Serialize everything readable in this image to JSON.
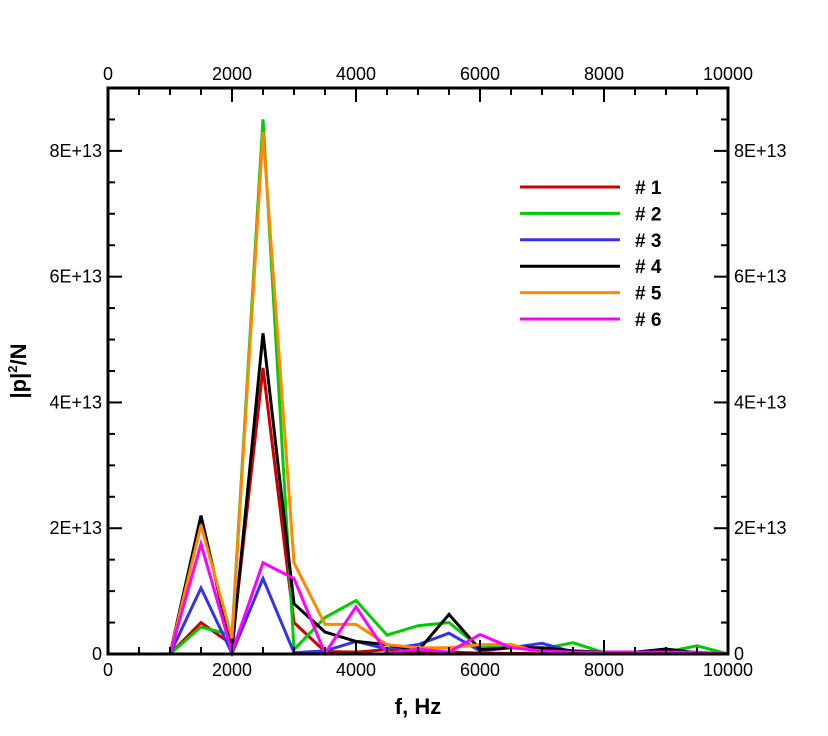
{
  "chart_data": {
    "type": "line",
    "title": "",
    "xlabel": "f, Hz",
    "ylabel": "|p|²/N",
    "ylabel_parts": {
      "base": "|p|",
      "sup": "2",
      "tail": "/N"
    },
    "xlim": [
      0,
      10000
    ],
    "ylim": [
      0,
      90000000000000.0
    ],
    "x_major_ticks": [
      0,
      2000,
      4000,
      6000,
      8000,
      10000
    ],
    "x_tick_labels": [
      "0",
      "2000",
      "4000",
      "6000",
      "8000",
      "10000"
    ],
    "y_major_ticks": [
      0,
      20000000000000.0,
      40000000000000.0,
      60000000000000.0,
      80000000000000.0
    ],
    "y_tick_labels": [
      "0",
      "2E+13",
      "4E+13",
      "6E+13",
      "8E+13"
    ],
    "x_minor_step": 500,
    "y_minor_step": 5000000000000.0,
    "grid": false,
    "legend_position": "top-right",
    "x": [
      0,
      500,
      1000,
      1500,
      2000,
      2500,
      3000,
      3500,
      4000,
      4500,
      5000,
      5500,
      6000,
      6500,
      7000,
      7500,
      8000,
      8500,
      9000,
      9500,
      10000
    ],
    "series": [
      {
        "name": "# 1",
        "color": "#cc0000",
        "values": [
          0,
          0,
          0,
          5000000000000.0,
          1500000000000.0,
          45500000000000.0,
          5000000000000.0,
          400000000000.0,
          300000000000.0,
          700000000000.0,
          300000000000.0,
          300000000000.0,
          150000000000.0,
          100000000000.0,
          100000000000.0,
          100000000000.0,
          50000000000.0,
          50000000000.0,
          50000000000.0,
          50000000000.0,
          0
        ]
      },
      {
        "name": "# 2",
        "color": "#00cc00",
        "values": [
          0,
          0,
          0,
          4300000000000.0,
          3000000000000.0,
          85000000000000.0,
          700000000000.0,
          5800000000000.0,
          8500000000000.0,
          3000000000000.0,
          4500000000000.0,
          5000000000000.0,
          1000000000000.0,
          1200000000000.0,
          800000000000.0,
          1800000000000.0,
          200000000000.0,
          300000000000.0,
          300000000000.0,
          1300000000000.0,
          0
        ]
      },
      {
        "name": "# 3",
        "color": "#3333ee",
        "values": [
          0,
          0,
          0,
          10500000000000.0,
          100000000000.0,
          12000000000000.0,
          200000000000.0,
          500000000000.0,
          2000000000000.0,
          800000000000.0,
          1500000000000.0,
          3300000000000.0,
          500000000000.0,
          1000000000000.0,
          1700000000000.0,
          300000000000.0,
          300000000000.0,
          200000000000.0,
          100000000000.0,
          100000000000.0,
          0
        ]
      },
      {
        "name": "# 4",
        "color": "#000000",
        "values": [
          0,
          0,
          0,
          22000000000000.0,
          500000000000.0,
          51000000000000.0,
          8000000000000.0,
          3500000000000.0,
          2000000000000.0,
          1500000000000.0,
          500000000000.0,
          6300000000000.0,
          700000000000.0,
          1000000000000.0,
          1000000000000.0,
          500000000000.0,
          300000000000.0,
          300000000000.0,
          800000000000.0,
          200000000000.0,
          0
        ]
      },
      {
        "name": "# 5",
        "color": "#ff8800",
        "values": [
          0,
          0,
          0,
          20500000000000.0,
          2500000000000.0,
          83000000000000.0,
          14500000000000.0,
          4700000000000.0,
          4700000000000.0,
          1500000000000.0,
          1000000000000.0,
          1000000000000.0,
          1500000000000.0,
          1500000000000.0,
          200000000000.0,
          100000000000.0,
          100000000000.0,
          100000000000.0,
          100000000000.0,
          100000000000.0,
          0
        ]
      },
      {
        "name": "# 6",
        "color": "#ff00ff",
        "values": [
          0,
          0,
          0,
          17500000000000.0,
          300000000000.0,
          14500000000000.0,
          12000000000000.0,
          100000000000.0,
          7500000000000.0,
          100000000000.0,
          800000000000.0,
          300000000000.0,
          3100000000000.0,
          1000000000000.0,
          500000000000.0,
          300000000000.0,
          300000000000.0,
          300000000000.0,
          300000000000.0,
          300000000000.0,
          0
        ]
      }
    ]
  }
}
